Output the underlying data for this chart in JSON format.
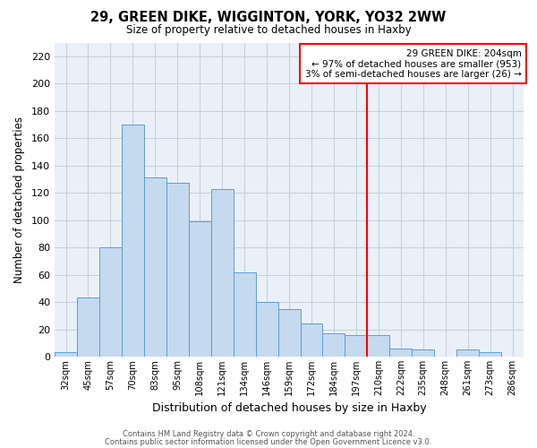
{
  "title": "29, GREEN DIKE, WIGGINTON, YORK, YO32 2WW",
  "subtitle": "Size of property relative to detached houses in Haxby",
  "xlabel": "Distribution of detached houses by size in Haxby",
  "ylabel": "Number of detached properties",
  "bin_labels": [
    "32sqm",
    "45sqm",
    "57sqm",
    "70sqm",
    "83sqm",
    "95sqm",
    "108sqm",
    "121sqm",
    "134sqm",
    "146sqm",
    "159sqm",
    "172sqm",
    "184sqm",
    "197sqm",
    "210sqm",
    "222sqm",
    "235sqm",
    "248sqm",
    "261sqm",
    "273sqm",
    "286sqm"
  ],
  "bar_heights": [
    3,
    43,
    80,
    170,
    131,
    127,
    99,
    123,
    62,
    40,
    35,
    24,
    17,
    16,
    16,
    6,
    5,
    0,
    5,
    3,
    0
  ],
  "bar_color": "#c5d9ef",
  "bar_edge_color": "#5a9fd4",
  "vline_index": 13.5,
  "vline_color": "red",
  "annotation_title": "29 GREEN DIKE: 204sqm",
  "annotation_line1": "← 97% of detached houses are smaller (953)",
  "annotation_line2": "3% of semi-detached houses are larger (26) →",
  "annotation_box_color": "white",
  "annotation_box_edge": "red",
  "plot_bg": "#eaf0f8",
  "grid_color": "#c8d0dc",
  "ylim": [
    0,
    230
  ],
  "yticks": [
    0,
    20,
    40,
    60,
    80,
    100,
    120,
    140,
    160,
    180,
    200,
    220
  ],
  "footer1": "Contains HM Land Registry data © Crown copyright and database right 2024.",
  "footer2": "Contains public sector information licensed under the Open Government Licence v3.0."
}
